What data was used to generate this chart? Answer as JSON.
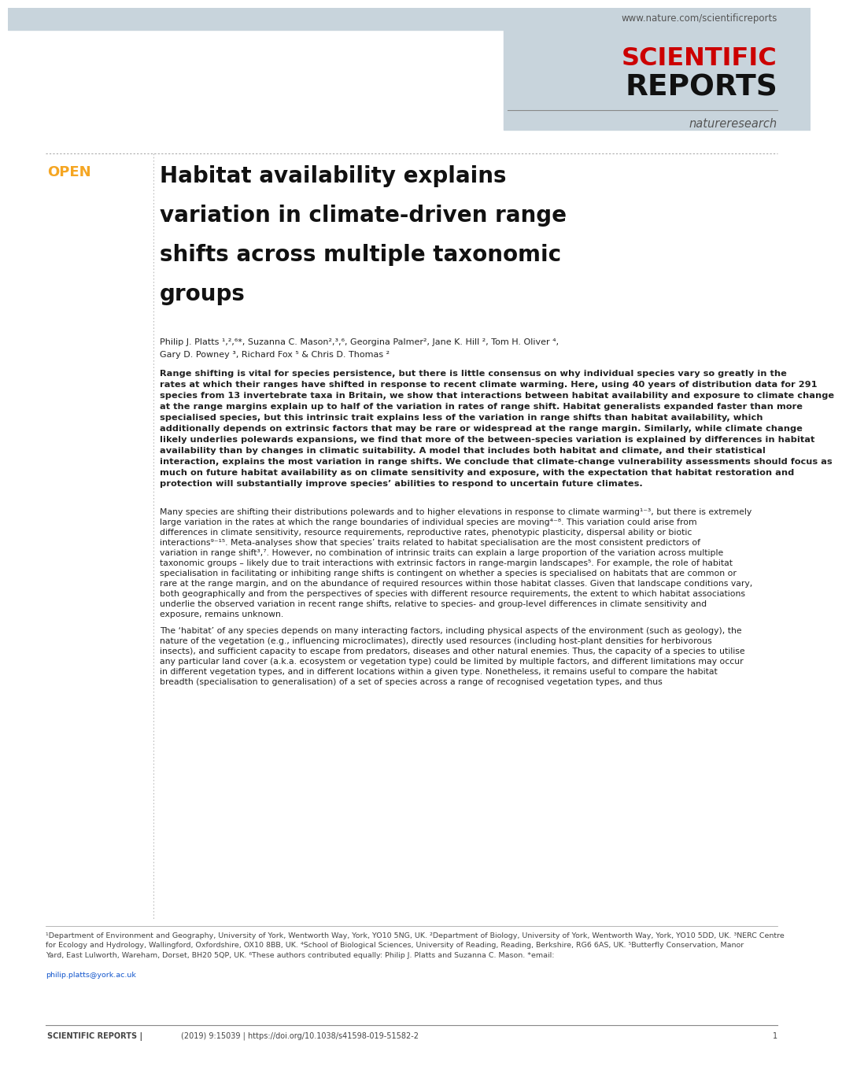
{
  "bg_color": "#ffffff",
  "header_bg": "#c8d4dc",
  "url_text": "www.nature.com/scientificreports",
  "url_color": "#555555",
  "scientific_color": "#cc0000",
  "reports_color": "#111111",
  "natureresearch_color": "#555555",
  "open_color": "#f5a623",
  "title_color": "#111111",
  "body_color": "#222222",
  "small_color": "#444444",
  "dotted_line_color": "#aaaaaa",
  "open_label": "OPEN",
  "title_line1": "Habitat availability explains",
  "title_line2": "variation in climate-driven range",
  "title_line3": "shifts across multiple taxonomic",
  "title_line4": "groups",
  "authors_line1": "Philip J. Platts ¹,²,⁶*, Suzanna C. Mason²,³,⁶, Georgina Palmer², Jane K. Hill ², Tom H. Oliver ⁴,",
  "authors_line2": "Gary D. Powney ³, Richard Fox ⁵ & Chris D. Thomas ²",
  "abstract_text": "Range shifting is vital for species persistence, but there is little consensus on why individual species vary so greatly in the rates at which their ranges have shifted in response to recent climate warming. Here, using 40 years of distribution data for 291 species from 13 invertebrate taxa in Britain, we show that interactions between habitat availability and exposure to climate change at the range margins explain up to half of the variation in rates of range shift. Habitat generalists expanded faster than more specialised species, but this intrinsic trait explains less of the variation in range shifts than habitat availability, which additionally depends on extrinsic factors that may be rare or widespread at the range margin. Similarly, while climate change likely underlies polewards expansions, we find that more of the between-species variation is explained by differences in habitat availability than by changes in climatic suitability. A model that includes both habitat and climate, and their statistical interaction, explains the most variation in range shifts. We conclude that climate-change vulnerability assessments should focus as much on future habitat availability as on climate sensitivity and exposure, with the expectation that habitat restoration and protection will substantially improve species’ abilities to respond to uncertain future climates.",
  "body_para1": "Many species are shifting their distributions polewards and to higher elevations in response to climate warming¹⁻³, but there is extremely large variation in the rates at which the range boundaries of individual species are moving⁴⁻⁸. This variation could arise from differences in climate sensitivity, resource requirements, reproductive rates, phenotypic plasticity, dispersal ability or biotic interactions⁹⁻¹⁵. Meta-analyses show that species’ traits related to habitat specialisation are the most consistent predictors of variation in range shift³,⁷. However, no combination of intrinsic traits can explain a large proportion of the variation across multiple taxonomic groups – likely due to trait interactions with extrinsic factors in range-margin landscapes⁵. For example, the role of habitat specialisation in facilitating or inhibiting range shifts is contingent on whether a species is specialised on habitats that are common or rare at the range margin, and on the abundance of required resources within those habitat classes. Given that landscape conditions vary, both geographically and from the perspectives of species with different resource requirements, the extent to which habitat associations underlie the observed variation in recent range shifts, relative to species- and group-level differences in climate sensitivity and exposure, remains unknown.",
  "body_para2": "    The ‘habitat’ of any species depends on many interacting factors, including physical aspects of the environment (such as geology), the nature of the vegetation (e.g., influencing microclimates), directly used resources (including host-plant densities for herbivorous insects), and sufficient capacity to escape from predators, diseases and other natural enemies. Thus, the capacity of a species to utilise any particular land cover (a.k.a. ecosystem or vegetation type) could be limited by multiple factors, and different limitations may occur in different vegetation types, and in different locations within a given type. Nonetheless, it remains useful to compare the habitat breadth (specialisation to generalisation) of a set of species across a range of recognised vegetation types, and thus",
  "footnotes_pre_email": "¹Department of Environment and Geography, University of York, Wentworth Way, York, YO10 5NG, UK. ²Department of Biology, University of York, Wentworth Way, York, YO10 5DD, UK. ³NERC Centre for Ecology and Hydrology, Wallingford, Oxfordshire, OX10 8BB, UK. ⁴School of Biological Sciences, University of Reading, Reading, Berkshire, RG6 6AS, UK. ⁵Butterfly Conservation, Manor Yard, East Lulworth, Wareham, Dorset, BH20 5QP, UK. ⁶These authors contributed equally: Philip J. Platts and Suzanna C. Mason. *email: ",
  "email_text": "philip.platts@york.ac.uk",
  "email_color": "#1155cc",
  "footer_journal": "Scientific Reports",
  "footer_doi": "(2019) 9:15039 | https://doi.org/10.1038/s41598-019-51582-2",
  "footer_page": "1"
}
